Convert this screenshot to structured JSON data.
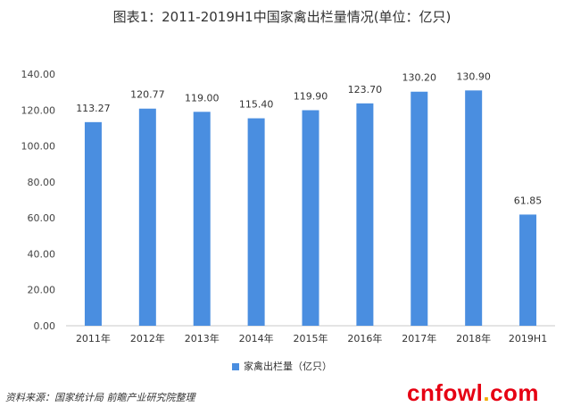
{
  "title": "图表1：2011-2019H1中国家禽出栏量情况(单位：亿只)",
  "source": "资料来源：国家统计局 前瞻产业研究院整理",
  "brand": {
    "main": "cnfowl",
    "dot": ".",
    "suffix": "com"
  },
  "colors": {
    "bar": "#4a8ee0",
    "axis": "#c8c8c8"
  },
  "chart_data": {
    "type": "bar",
    "title": "图表1：2011-2019H1中国家禽出栏量情况(单位：亿只)",
    "categories": [
      "2011年",
      "2012年",
      "2013年",
      "2014年",
      "2015年",
      "2016年",
      "2017年",
      "2018年",
      "2019H1"
    ],
    "series": [
      {
        "name": "家禽出栏量（亿只）",
        "values": [
          113.27,
          120.77,
          119.0,
          115.4,
          119.9,
          123.7,
          130.2,
          130.9,
          61.85
        ],
        "labels": [
          "113.27",
          "120.77",
          "119.00",
          "115.40",
          "119.90",
          "123.70",
          "130.20",
          "130.90",
          "61.85"
        ]
      }
    ],
    "ylim": [
      0,
      140
    ],
    "yticks": [
      0,
      20,
      40,
      60,
      80,
      100,
      120,
      140
    ],
    "ytick_labels": [
      "0.00",
      "20.00",
      "40.00",
      "60.00",
      "80.00",
      "100.00",
      "120.00",
      "140.00"
    ],
    "grid": false,
    "legend": "bottom"
  }
}
